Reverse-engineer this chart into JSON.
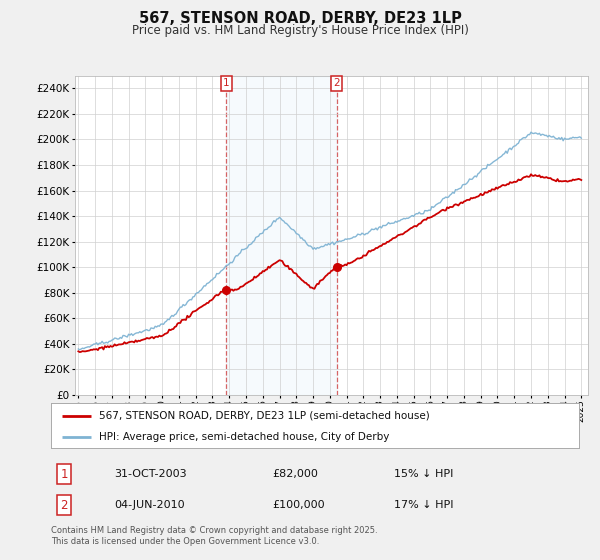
{
  "title": "567, STENSON ROAD, DERBY, DE23 1LP",
  "subtitle": "Price paid vs. HM Land Registry's House Price Index (HPI)",
  "ylim": [
    0,
    250000
  ],
  "yticks": [
    0,
    20000,
    40000,
    60000,
    80000,
    100000,
    120000,
    140000,
    160000,
    180000,
    200000,
    220000,
    240000
  ],
  "legend_line1": "567, STENSON ROAD, DERBY, DE23 1LP (semi-detached house)",
  "legend_line2": "HPI: Average price, semi-detached house, City of Derby",
  "transaction1_date": "31-OCT-2003",
  "transaction1_price": "£82,000",
  "transaction1_hpi": "15% ↓ HPI",
  "transaction1_year": 2003.83,
  "transaction1_value": 82000,
  "transaction2_date": "04-JUN-2010",
  "transaction2_price": "£100,000",
  "transaction2_hpi": "17% ↓ HPI",
  "transaction2_year": 2010.42,
  "transaction2_value": 100000,
  "footnote": "Contains HM Land Registry data © Crown copyright and database right 2025.\nThis data is licensed under the Open Government Licence v3.0.",
  "color_price": "#cc0000",
  "color_hpi": "#7fb3d3",
  "color_vline": "#cc3333",
  "fig_bg": "#f0f0f0",
  "plot_bg": "#ffffff",
  "grid_color": "#d0d0d0"
}
